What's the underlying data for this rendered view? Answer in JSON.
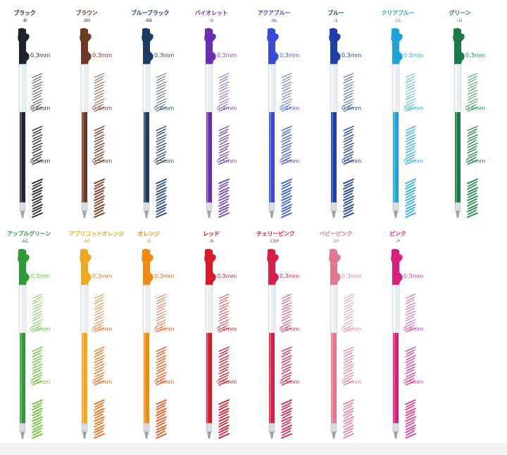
{
  "refills": [
    {
      "name": "ブラック",
      "code": "-B",
      "color": "#1f2330",
      "ink": "#2a2a2a",
      "sizes": [
        "0.3mm",
        "0.4mm",
        "0.5mm"
      ]
    },
    {
      "name": "ブラウン",
      "code": "-BN",
      "color": "#6e3a26",
      "ink": "#7a3a28",
      "sizes": [
        "0.3mm",
        "0.4mm",
        "0.5mm"
      ]
    },
    {
      "name": "ブルーブラック",
      "code": "-BB",
      "color": "#1e3a63",
      "ink": "#2e4a7a",
      "sizes": [
        "0.3mm",
        "0.4mm",
        "0.5mm"
      ]
    },
    {
      "name": "バイオレット",
      "code": "-V",
      "color": "#6a2fb0",
      "ink": "#7a4ab8",
      "sizes": [
        "0.3mm",
        "0.4mm",
        "0.5mm"
      ]
    },
    {
      "name": "アクアブルー",
      "code": "-AL",
      "color": "#3a4ad8",
      "ink": "#3f5fd6",
      "sizes": [
        "0.3mm",
        "0.4mm",
        "0.5mm"
      ]
    },
    {
      "name": "ブルー",
      "code": "-L",
      "color": "#1f3fa8",
      "ink": "#2340a8",
      "sizes": [
        "0.3mm",
        "0.4mm",
        "0.5mm"
      ]
    },
    {
      "name": "クリアブルー",
      "code": "-CL",
      "color": "#1ea2d8",
      "ink": "#35b3e0",
      "sizes": [
        "0.3mm",
        "0.4mm",
        "0.5mm"
      ]
    },
    {
      "name": "グリーン",
      "code": "-G",
      "color": "#1a7a44",
      "ink": "#238a50",
      "sizes": [
        "0.3mm",
        "0.4mm",
        "0.5mm"
      ]
    },
    {
      "name": "アップルグリーン",
      "code": "-AG",
      "color": "#2f9a38",
      "ink": "#6ac23a",
      "sizes": [
        "0.3mm",
        "0.4mm",
        "0.5mm"
      ]
    },
    {
      "name": "アプリコットオレンジ",
      "code": "-AO",
      "color": "#f0a820",
      "ink": "#e8741e",
      "sizes": [
        "0.3mm",
        "0.4mm",
        "0.5mm"
      ]
    },
    {
      "name": "オレンジ",
      "code": "-O",
      "color": "#f08a10",
      "ink": "#ef5a1a",
      "sizes": [
        "0.3mm",
        "0.4mm",
        "0.5mm"
      ]
    },
    {
      "name": "レッド",
      "code": "-R",
      "color": "#d61a2a",
      "ink": "#d8202e",
      "sizes": [
        "0.3mm",
        "0.4mm",
        "0.5mm"
      ]
    },
    {
      "name": "チェリーピンク",
      "code": "-CRP",
      "color": "#d81e46",
      "ink": "#d62a5a",
      "sizes": [
        "0.3mm",
        "0.4mm",
        "0.5mm"
      ]
    },
    {
      "name": "ベビーピンク",
      "code": "-BP",
      "color": "#e2788e",
      "ink": "#e88aa2",
      "sizes": [
        "0.3mm",
        "0.4mm",
        "0.5mm"
      ]
    },
    {
      "name": "ピンク",
      "code": "-P",
      "color": "#d8207a",
      "ink": "#e0409a",
      "sizes": [
        "0.3mm",
        "0.4mm",
        "0.5mm"
      ]
    }
  ]
}
